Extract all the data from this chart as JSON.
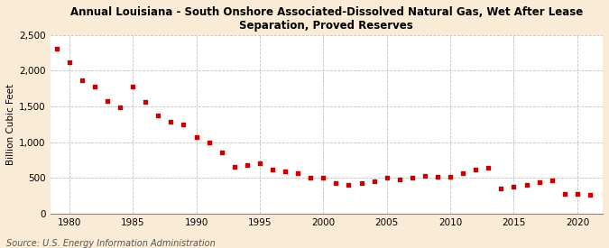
{
  "title": "Annual Louisiana - South Onshore Associated-Dissolved Natural Gas, Wet After Lease\nSeparation, Proved Reserves",
  "ylabel": "Billion Cubic Feet",
  "source": "Source: U.S. Energy Information Administration",
  "background_color": "#faebd7",
  "plot_background_color": "#ffffff",
  "marker_color": "#cc0000",
  "grid_color": "#bbbbbb",
  "years": [
    1979,
    1980,
    1981,
    1982,
    1983,
    1984,
    1985,
    1986,
    1987,
    1988,
    1989,
    1990,
    1991,
    1992,
    1993,
    1994,
    1995,
    1996,
    1997,
    1998,
    1999,
    2000,
    2001,
    2002,
    2003,
    2004,
    2005,
    2006,
    2007,
    2008,
    2009,
    2010,
    2011,
    2012,
    2013,
    2014,
    2015,
    2016,
    2017,
    2018,
    2019,
    2020,
    2021
  ],
  "values": [
    2310,
    2120,
    1870,
    1780,
    1580,
    1490,
    1780,
    1560,
    1380,
    1290,
    1250,
    1070,
    990,
    850,
    650,
    680,
    710,
    620,
    590,
    560,
    500,
    500,
    430,
    400,
    420,
    450,
    500,
    480,
    500,
    530,
    510,
    520,
    570,
    620,
    640,
    350,
    380,
    400,
    440,
    460,
    280,
    270,
    260
  ],
  "ylim": [
    0,
    2500
  ],
  "yticks": [
    0,
    500,
    1000,
    1500,
    2000,
    2500
  ],
  "ytick_labels": [
    "0",
    "500",
    "1,000",
    "1,500",
    "2,000",
    "2,500"
  ],
  "xlim": [
    1978.5,
    2022
  ],
  "xticks": [
    1980,
    1985,
    1990,
    1995,
    2000,
    2005,
    2010,
    2015,
    2020
  ]
}
